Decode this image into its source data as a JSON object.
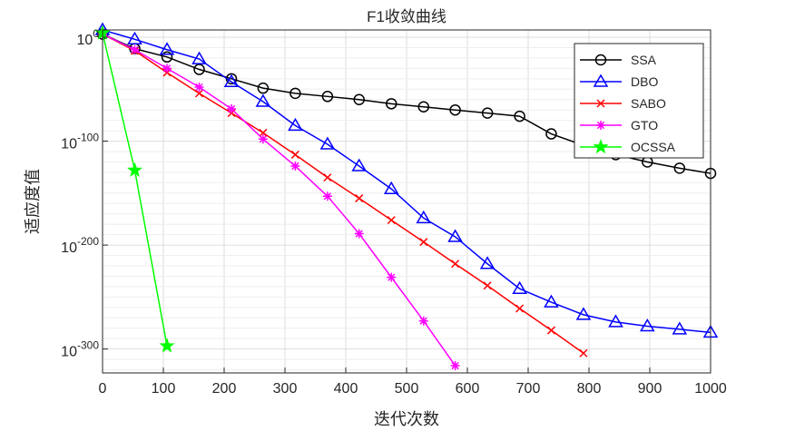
{
  "chart_data": {
    "type": "line",
    "title": "F1收敛曲线",
    "xlabel": "迭代次数",
    "ylabel": "适应度值",
    "xlim": [
      0,
      1000
    ],
    "ylim_log10": [
      -323,
      7
    ],
    "y_scale": "log",
    "grid": true,
    "legend_position": "top-right",
    "xticks": [
      0,
      100,
      200,
      300,
      400,
      500,
      600,
      700,
      800,
      900,
      1000
    ],
    "yticks": [
      {
        "exp": 0,
        "base": "10",
        "sup": "0"
      },
      {
        "exp": -100,
        "base": "10",
        "sup": "-100"
      },
      {
        "exp": -200,
        "base": "10",
        "sup": "-200"
      },
      {
        "exp": -300,
        "base": "10",
        "sup": "-300"
      }
    ],
    "series": [
      {
        "name": "SSA",
        "color": "#000000",
        "marker": "circle",
        "points": [
          [
            0,
            3
          ],
          [
            53,
            -11
          ],
          [
            106,
            -19
          ],
          [
            159,
            -31
          ],
          [
            212,
            -40
          ],
          [
            264,
            -49
          ],
          [
            317,
            -54
          ],
          [
            370,
            -57
          ],
          [
            422,
            -60
          ],
          [
            475,
            -64
          ],
          [
            528,
            -67
          ],
          [
            580,
            -70
          ],
          [
            633,
            -73
          ],
          [
            686,
            -76
          ],
          [
            738,
            -93
          ],
          [
            791,
            -104
          ],
          [
            844,
            -113
          ],
          [
            896,
            -120
          ],
          [
            949,
            -126
          ],
          [
            1000,
            -131
          ]
        ]
      },
      {
        "name": "DBO",
        "color": "#0000ff",
        "marker": "triangle",
        "points": [
          [
            0,
            7
          ],
          [
            53,
            -2
          ],
          [
            106,
            -12
          ],
          [
            159,
            -21
          ],
          [
            212,
            -43
          ],
          [
            264,
            -62
          ],
          [
            317,
            -85
          ],
          [
            370,
            -103
          ],
          [
            422,
            -124
          ],
          [
            475,
            -146
          ],
          [
            528,
            -174
          ],
          [
            580,
            -192
          ],
          [
            633,
            -218
          ],
          [
            686,
            -242
          ],
          [
            738,
            -255
          ],
          [
            791,
            -267
          ],
          [
            844,
            -274
          ],
          [
            896,
            -278
          ],
          [
            949,
            -281
          ],
          [
            1000,
            -284
          ]
        ]
      },
      {
        "name": "SABO",
        "color": "#ff0000",
        "marker": "x",
        "points": [
          [
            0,
            3
          ],
          [
            53,
            -13
          ],
          [
            106,
            -34
          ],
          [
            159,
            -54
          ],
          [
            212,
            -73
          ],
          [
            264,
            -92
          ],
          [
            317,
            -113
          ],
          [
            370,
            -135
          ],
          [
            422,
            -155
          ],
          [
            475,
            -176
          ],
          [
            528,
            -197
          ],
          [
            580,
            -218
          ],
          [
            633,
            -239
          ],
          [
            686,
            -261
          ],
          [
            738,
            -282
          ],
          [
            791,
            -304
          ]
        ]
      },
      {
        "name": "GTO",
        "color": "#ff00ff",
        "marker": "star",
        "points": [
          [
            0,
            3
          ],
          [
            53,
            -12
          ],
          [
            106,
            -30
          ],
          [
            159,
            -48
          ],
          [
            212,
            -69
          ],
          [
            264,
            -98
          ],
          [
            317,
            -124
          ],
          [
            370,
            -153
          ],
          [
            422,
            -189
          ],
          [
            475,
            -231
          ],
          [
            528,
            -273
          ],
          [
            580,
            -316
          ]
        ]
      },
      {
        "name": "OCSSA",
        "color": "#00ff00",
        "marker": "pentagram",
        "points": [
          [
            0,
            4
          ],
          [
            53,
            -128
          ],
          [
            106,
            -297
          ]
        ]
      }
    ]
  }
}
